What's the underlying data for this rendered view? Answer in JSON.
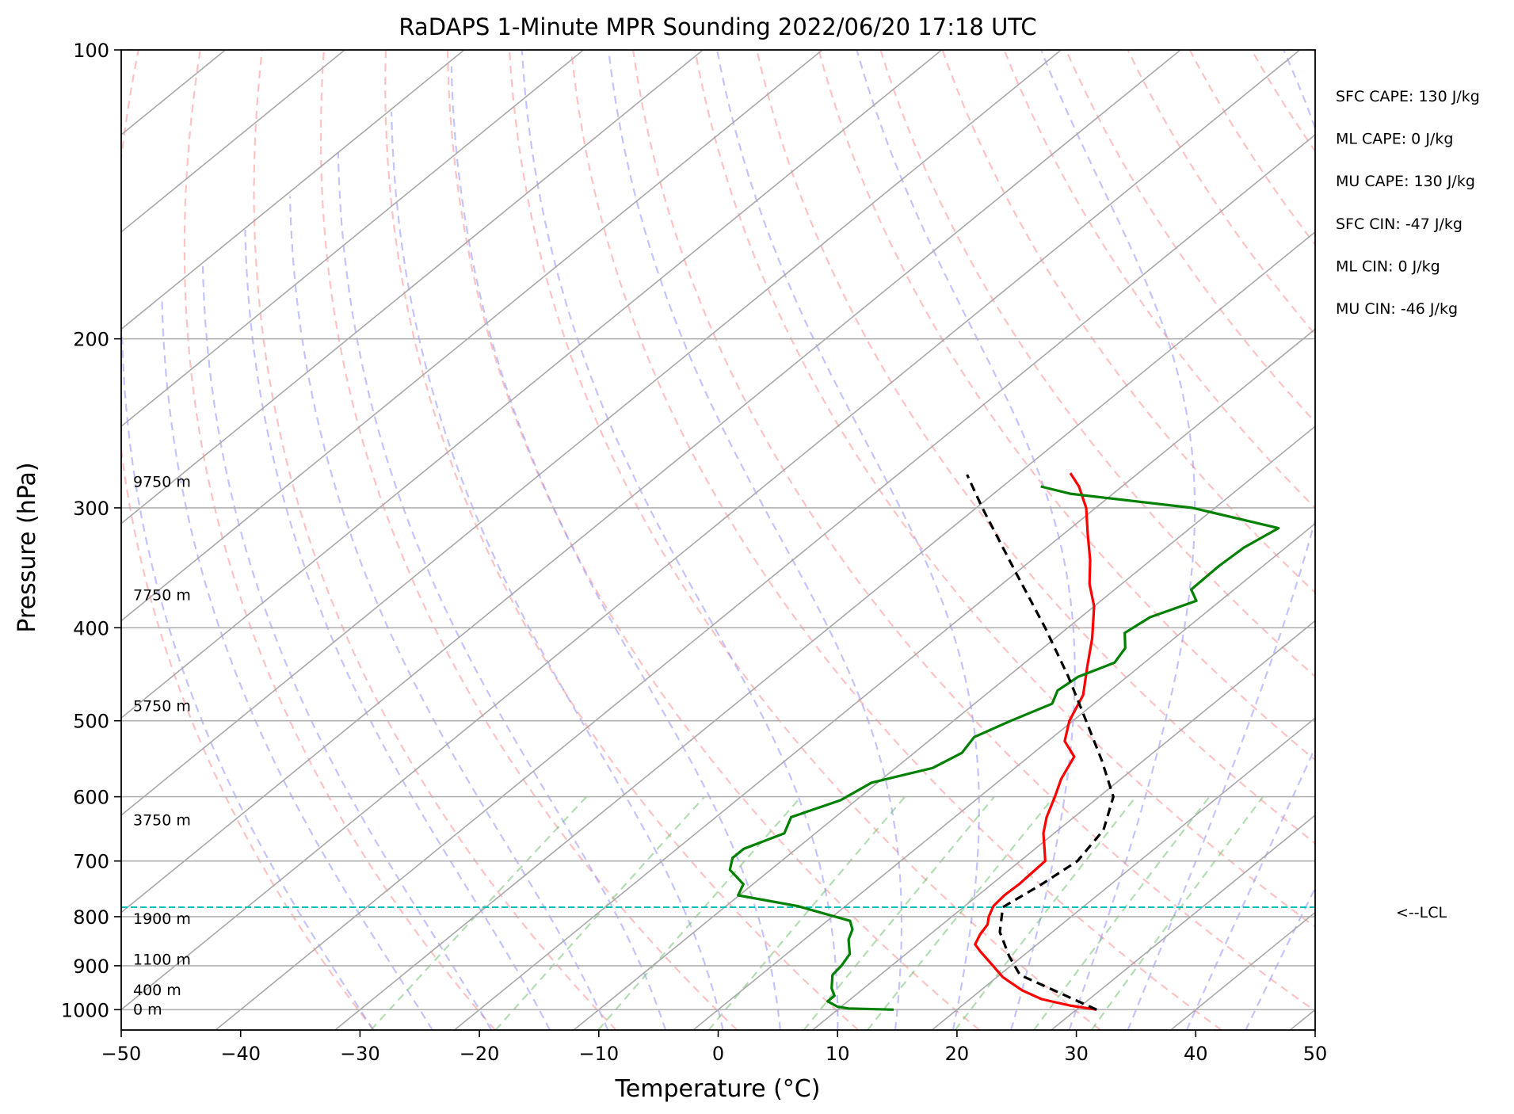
{
  "chart_data": {
    "type": "line",
    "title": "RaDAPS 1-Minute MPR Sounding 2022/06/20 17:18 UTC",
    "xlabel": "Temperature (°C)",
    "ylabel": "Pressure (hPa)",
    "xlim": [
      -50,
      50
    ],
    "ylim": [
      1050,
      100
    ],
    "y_scale": "log",
    "skew": "skew-T",
    "grid": true,
    "xticks": [
      "−50",
      "−40",
      "−30",
      "−20",
      "−10",
      "0",
      "10",
      "20",
      "30",
      "40",
      "50"
    ],
    "yticks": [
      {
        "p": 100,
        "label": "100"
      },
      {
        "p": 200,
        "label": "200"
      },
      {
        "p": 300,
        "label": "300"
      },
      {
        "p": 400,
        "label": "400"
      },
      {
        "p": 500,
        "label": "500"
      },
      {
        "p": 600,
        "label": "600"
      },
      {
        "p": 700,
        "label": "700"
      },
      {
        "p": 800,
        "label": "800"
      },
      {
        "p": 900,
        "label": "900"
      },
      {
        "p": 1000,
        "label": "1000"
      }
    ],
    "height_labels": [
      {
        "p": 1000,
        "text": "0 m"
      },
      {
        "p": 955,
        "text": "400 m"
      },
      {
        "p": 887,
        "text": "1100 m"
      },
      {
        "p": 805,
        "text": "1900 m"
      },
      {
        "p": 635,
        "text": "3750 m"
      },
      {
        "p": 483,
        "text": "5750 m"
      },
      {
        "p": 370,
        "text": "7750 m"
      },
      {
        "p": 282,
        "text": "9750 m"
      }
    ],
    "lcl": {
      "p": 782,
      "label": "<--LCL"
    },
    "indices": [
      "SFC CAPE: 130 J/kg",
      "ML CAPE: 0 J/kg",
      "MU CAPE: 130 J/kg",
      "SFC CIN: -47 J/kg",
      "ML CIN: 0 J/kg",
      "MU CIN: -46 J/kg"
    ],
    "series": [
      {
        "color": "#ff0000",
        "points": [
          [
            1000,
            31.7
          ],
          [
            990,
            29
          ],
          [
            975,
            26
          ],
          [
            955,
            23.5
          ],
          [
            925,
            20.5
          ],
          [
            900,
            18.5
          ],
          [
            870,
            16
          ],
          [
            855,
            14.8
          ],
          [
            835,
            14.2
          ],
          [
            815,
            13.8
          ],
          [
            800,
            13.1
          ],
          [
            780,
            12.4
          ],
          [
            760,
            12.2
          ],
          [
            740,
            12.3
          ],
          [
            720,
            12.2
          ],
          [
            700,
            12.1
          ],
          [
            680,
            10.8
          ],
          [
            655,
            9.1
          ],
          [
            630,
            7.7
          ],
          [
            600,
            6.3
          ],
          [
            575,
            5.0
          ],
          [
            545,
            3.8
          ],
          [
            525,
            1.4
          ],
          [
            500,
            -0.3
          ],
          [
            470,
            -1.8
          ],
          [
            440,
            -4.3
          ],
          [
            410,
            -6.9
          ],
          [
            380,
            -10.0
          ],
          [
            360,
            -12.7
          ],
          [
            340,
            -15.1
          ],
          [
            320,
            -17.9
          ],
          [
            300,
            -20.8
          ],
          [
            285,
            -23.6
          ],
          [
            276,
            -25.7
          ]
        ]
      },
      {
        "color": "#008000",
        "points": [
          [
            1000,
            14.7
          ],
          [
            997,
            10.8
          ],
          [
            993,
            9.7
          ],
          [
            980,
            8.3
          ],
          [
            967,
            8.3
          ],
          [
            950,
            7.3
          ],
          [
            920,
            6.0
          ],
          [
            900,
            5.8
          ],
          [
            875,
            5.3
          ],
          [
            860,
            4.5
          ],
          [
            845,
            3.7
          ],
          [
            825,
            3.0
          ],
          [
            808,
            1.9
          ],
          [
            780,
            -4.0
          ],
          [
            760,
            -10.1
          ],
          [
            740,
            -10.8
          ],
          [
            715,
            -13.4
          ],
          [
            695,
            -14.4
          ],
          [
            680,
            -14.4
          ],
          [
            655,
            -12.6
          ],
          [
            630,
            -13.7
          ],
          [
            605,
            -11.3
          ],
          [
            580,
            -10.5
          ],
          [
            560,
            -6.9
          ],
          [
            540,
            -6.0
          ],
          [
            520,
            -6.6
          ],
          [
            500,
            -5.2
          ],
          [
            480,
            -3.5
          ],
          [
            465,
            -4.4
          ],
          [
            450,
            -4.1
          ],
          [
            435,
            -2.5
          ],
          [
            420,
            -3.1
          ],
          [
            405,
            -4.7
          ],
          [
            390,
            -4.2
          ],
          [
            375,
            -2.0
          ],
          [
            365,
            -3.6
          ],
          [
            345,
            -3.7
          ],
          [
            330,
            -3.5
          ],
          [
            315,
            -2.6
          ],
          [
            300,
            -11.9
          ],
          [
            290,
            -23.6
          ],
          [
            285,
            -26.8
          ]
        ]
      },
      {
        "color": "#000000",
        "dashed": true,
        "points": [
          [
            1000,
            31.7
          ],
          [
            920,
            21.7
          ],
          [
            880,
            18.9
          ],
          [
            830,
            15.6
          ],
          [
            782,
            13.3
          ],
          [
            740,
            14.2
          ],
          [
            700,
            14.8
          ],
          [
            650,
            13.8
          ],
          [
            600,
            11.2
          ],
          [
            550,
            6.5
          ],
          [
            500,
            1.1
          ],
          [
            450,
            -4.9
          ],
          [
            400,
            -11.9
          ],
          [
            350,
            -20.1
          ],
          [
            300,
            -29.5
          ],
          [
            277,
            -34.2
          ]
        ]
      }
    ]
  }
}
